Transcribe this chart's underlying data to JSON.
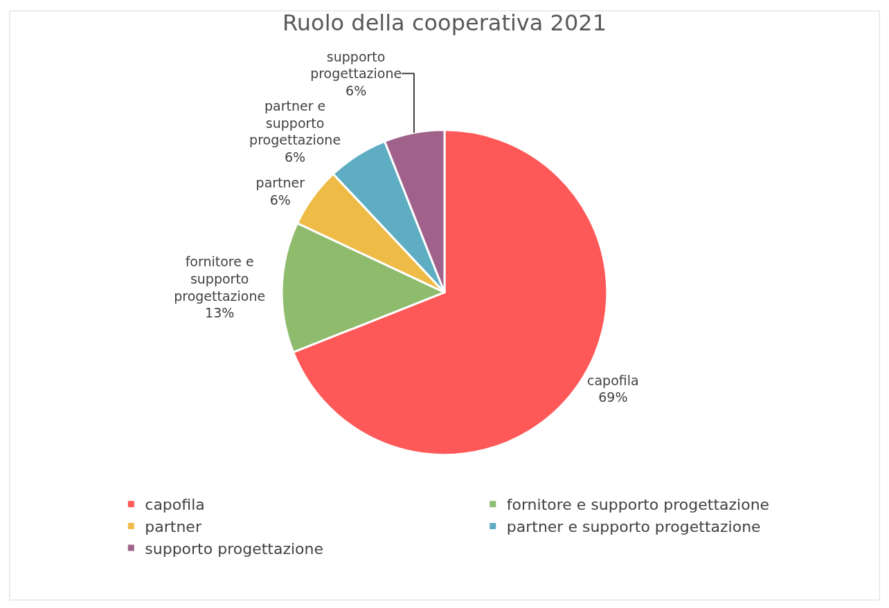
{
  "chart_data": {
    "type": "pie",
    "title": "Ruolo della cooperativa 2021",
    "categories": [
      "capofila",
      "fornitore e supporto progettazione",
      "partner",
      "partner e supporto progettazione",
      "supporto progettazione"
    ],
    "values": [
      69,
      13,
      6,
      6,
      6
    ],
    "value_labels": [
      "69%",
      "13%",
      "6%",
      "6%",
      "6%"
    ],
    "colors": [
      "#fe5858",
      "#8fbb6d",
      "#efbb47",
      "#5eadc2",
      "#a0628a"
    ],
    "legend": "bottom"
  }
}
